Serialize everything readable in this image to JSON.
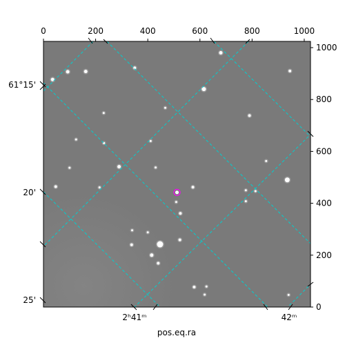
{
  "chart_data": {
    "type": "scatter",
    "title": "",
    "xlabel": "pos.eq.ra",
    "ylabel": "",
    "x_pixel_axis": {
      "range": [
        0,
        1024
      ],
      "ticks": [
        0,
        200,
        400,
        600,
        800,
        1000
      ],
      "tick_labels": [
        "0",
        "200",
        "400",
        "600",
        "800",
        "1000"
      ]
    },
    "y_pixel_axis": {
      "range": [
        0,
        1024
      ],
      "ticks": [
        0,
        200,
        400,
        600,
        800,
        1000
      ],
      "tick_labels": [
        "0",
        "200",
        "400",
        "600",
        "800",
        "1000"
      ]
    },
    "dec_ticks": [
      {
        "label": "61°15'",
        "value": 61.25
      },
      {
        "label": "20'",
        "value": 61.3333
      },
      {
        "label": "25'",
        "value": 61.4167
      }
    ],
    "ra_ticks": [
      {
        "label": "2ʰ41ᵐ",
        "value": 2.6833
      },
      {
        "label": "42ᵐ",
        "value": 2.7
      }
    ],
    "grid": true,
    "grid_color": "#00d0d0",
    "background_color": "#7a7a7a",
    "marker": {
      "x": 512,
      "y": 442,
      "color": "#ff00ff"
    },
    "stars": [
      {
        "x": 35,
        "y": 877,
        "b": 2.5
      },
      {
        "x": 93,
        "y": 907,
        "b": 2.5
      },
      {
        "x": 162,
        "y": 908,
        "b": 2.5
      },
      {
        "x": 350,
        "y": 922,
        "b": 2
      },
      {
        "x": 615,
        "y": 840,
        "b": 3
      },
      {
        "x": 680,
        "y": 980,
        "b": 2.5
      },
      {
        "x": 945,
        "y": 910,
        "b": 2
      },
      {
        "x": 790,
        "y": 738,
        "b": 2
      },
      {
        "x": 467,
        "y": 768,
        "b": 1.5
      },
      {
        "x": 231,
        "y": 748,
        "b": 1.5
      },
      {
        "x": 232,
        "y": 632,
        "b": 1.5
      },
      {
        "x": 411,
        "y": 640,
        "b": 1.5
      },
      {
        "x": 125,
        "y": 646,
        "b": 1.5
      },
      {
        "x": 290,
        "y": 541,
        "b": 2.5
      },
      {
        "x": 854,
        "y": 563,
        "b": 1.5
      },
      {
        "x": 100,
        "y": 537,
        "b": 1.5
      },
      {
        "x": 430,
        "y": 538,
        "b": 1.5
      },
      {
        "x": 935,
        "y": 490,
        "b": 3.5
      },
      {
        "x": 47,
        "y": 464,
        "b": 2
      },
      {
        "x": 215,
        "y": 461,
        "b": 1.5
      },
      {
        "x": 573,
        "y": 462,
        "b": 2
      },
      {
        "x": 776,
        "y": 450,
        "b": 1.5
      },
      {
        "x": 813,
        "y": 447,
        "b": 1.5
      },
      {
        "x": 509,
        "y": 405,
        "b": 1.5
      },
      {
        "x": 776,
        "y": 408,
        "b": 1.5
      },
      {
        "x": 525,
        "y": 361,
        "b": 2
      },
      {
        "x": 340,
        "y": 296,
        "b": 1.5
      },
      {
        "x": 400,
        "y": 288,
        "b": 1.5
      },
      {
        "x": 338,
        "y": 240,
        "b": 2
      },
      {
        "x": 447,
        "y": 242,
        "b": 4.5
      },
      {
        "x": 523,
        "y": 259,
        "b": 2
      },
      {
        "x": 415,
        "y": 200,
        "b": 2.5
      },
      {
        "x": 440,
        "y": 169,
        "b": 2
      },
      {
        "x": 578,
        "y": 77,
        "b": 2
      },
      {
        "x": 625,
        "y": 79,
        "b": 1.5
      },
      {
        "x": 618,
        "y": 48,
        "b": 1.5
      },
      {
        "x": 940,
        "y": 47,
        "b": 1.5
      }
    ]
  }
}
